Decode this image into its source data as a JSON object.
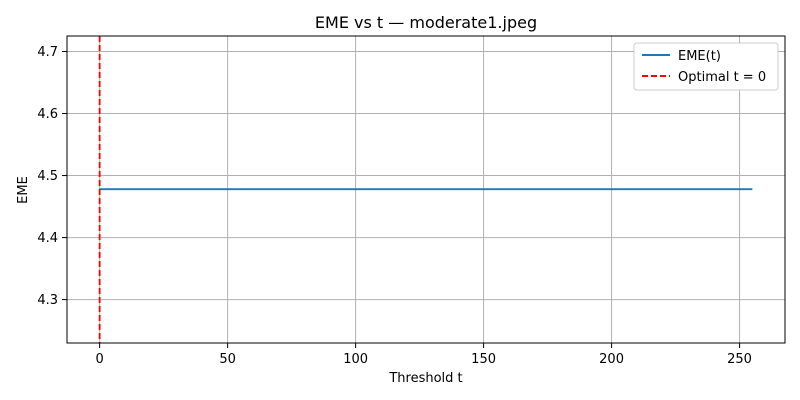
{
  "chart_data": {
    "type": "line",
    "title": "EME vs t — moderate1.jpeg",
    "xlabel": "Threshold t",
    "ylabel": "EME",
    "xlim": [
      -12.75,
      267.75
    ],
    "ylim": [
      4.23,
      4.725
    ],
    "xticks": [
      0,
      50,
      100,
      150,
      200,
      250
    ],
    "yticks": [
      4.3,
      4.4,
      4.5,
      4.6,
      4.7
    ],
    "xtick_labels": [
      "0",
      "50",
      "100",
      "150",
      "200",
      "250"
    ],
    "ytick_labels": [
      "4.3",
      "4.4",
      "4.5",
      "4.6",
      "4.7"
    ],
    "grid": true,
    "legend_position": "top-right",
    "series": [
      {
        "name": "EME(t)",
        "color": "#1f77b4",
        "style": "solid",
        "x": [
          0,
          255
        ],
        "y": [
          4.478,
          4.478
        ]
      }
    ],
    "vlines": [
      {
        "name": "Optimal t = 0",
        "color": "#ff0000",
        "style": "dashed",
        "x": 0
      }
    ]
  }
}
